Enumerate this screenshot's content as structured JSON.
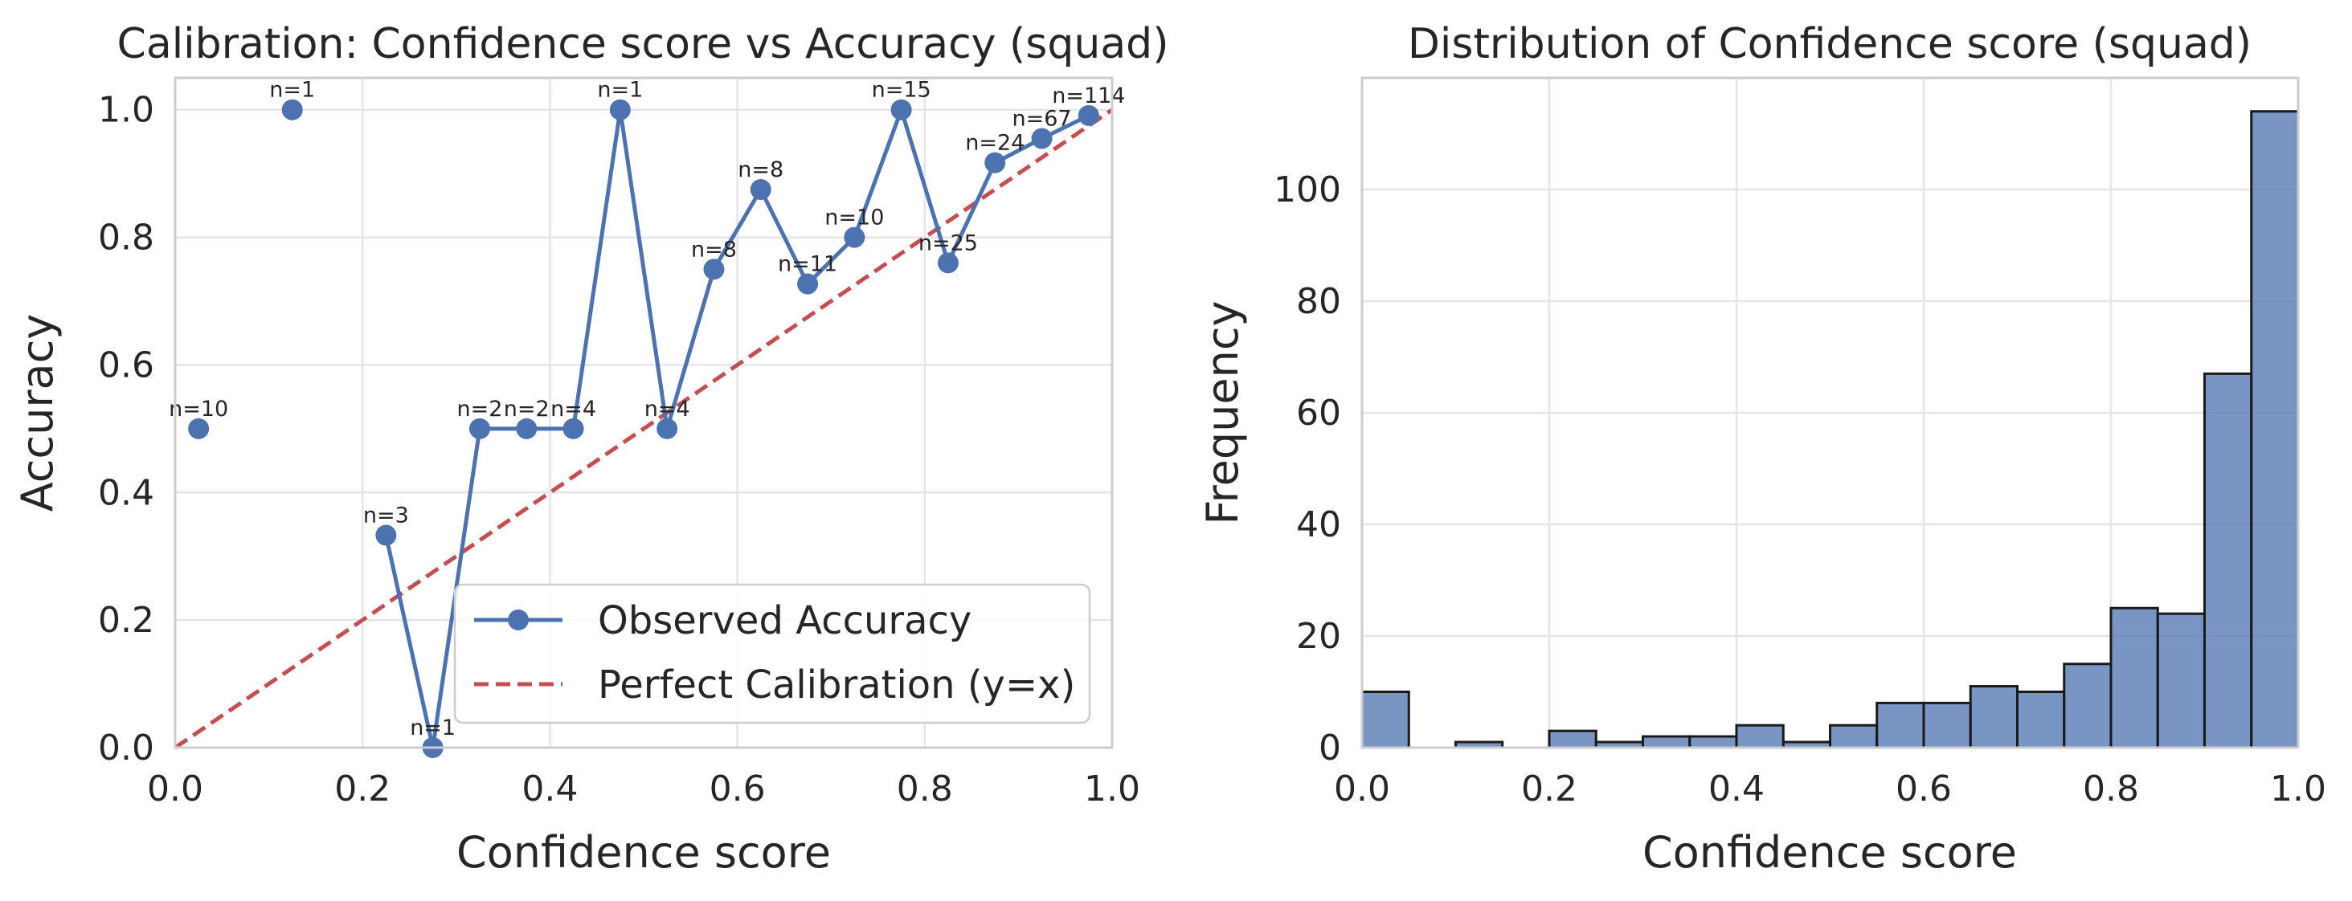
{
  "colors": {
    "series": "#4C72B0",
    "diagonal": "#C44E52",
    "frame": "#cccccc",
    "grid": "#e5e5e5",
    "text": "#262626"
  },
  "chart_data": [
    {
      "type": "line",
      "title": "Calibration: Confidence score vs Accuracy (squad)",
      "xlabel": "Confidence score",
      "ylabel": "Accuracy",
      "xlim": [
        0,
        1
      ],
      "ylim": [
        0,
        1.05
      ],
      "xticks": [
        "0.0",
        "0.2",
        "0.4",
        "0.6",
        "0.8",
        "1.0"
      ],
      "yticks": [
        "0.0",
        "0.2",
        "0.4",
        "0.6",
        "0.8",
        "1.0"
      ],
      "grid": true,
      "legend_position": "lower-right",
      "series": [
        {
          "name": "Observed Accuracy",
          "marker": "circle",
          "points": [
            {
              "x": 0.025,
              "y": 0.5,
              "label": "n=10"
            },
            {
              "x": 0.125,
              "y": 1.0,
              "label": "n=1"
            },
            {
              "x": 0.225,
              "y": 0.333,
              "label": "n=3"
            },
            {
              "x": 0.275,
              "y": 0.0,
              "label": "n=1"
            },
            {
              "x": 0.325,
              "y": 0.5,
              "label": "n=2"
            },
            {
              "x": 0.375,
              "y": 0.5,
              "label": "n=2"
            },
            {
              "x": 0.425,
              "y": 0.5,
              "label": "n=4"
            },
            {
              "x": 0.475,
              "y": 1.0,
              "label": "n=1"
            },
            {
              "x": 0.525,
              "y": 0.5,
              "label": "n=4"
            },
            {
              "x": 0.575,
              "y": 0.75,
              "label": "n=8"
            },
            {
              "x": 0.625,
              "y": 0.875,
              "label": "n=8"
            },
            {
              "x": 0.675,
              "y": 0.727,
              "label": "n=11"
            },
            {
              "x": 0.725,
              "y": 0.8,
              "label": "n=10"
            },
            {
              "x": 0.775,
              "y": 1.0,
              "label": "n=15"
            },
            {
              "x": 0.825,
              "y": 0.76,
              "label": "n=25"
            },
            {
              "x": 0.875,
              "y": 0.917,
              "label": "n=24"
            },
            {
              "x": 0.925,
              "y": 0.955,
              "label": "n=67"
            },
            {
              "x": 0.975,
              "y": 0.991,
              "label": "n=114"
            }
          ],
          "connect_from_index": 2
        },
        {
          "name": "Perfect Calibration (y=x)",
          "style": "dashed",
          "points": [
            {
              "x": 0,
              "y": 0
            },
            {
              "x": 1,
              "y": 1
            }
          ]
        }
      ]
    },
    {
      "type": "bar",
      "subtype": "histogram",
      "title": "Distribution of Confidence score (squad)",
      "xlabel": "Confidence score",
      "ylabel": "Frequency",
      "xlim": [
        0,
        1
      ],
      "ylim": [
        0,
        120
      ],
      "xticks": [
        "0.0",
        "0.2",
        "0.4",
        "0.6",
        "0.8",
        "1.0"
      ],
      "yticks": [
        "0",
        "20",
        "40",
        "60",
        "80",
        "100"
      ],
      "grid": true,
      "bin_edges": [
        0,
        0.05,
        0.1,
        0.15,
        0.2,
        0.25,
        0.3,
        0.35,
        0.4,
        0.45,
        0.5,
        0.55,
        0.6,
        0.65,
        0.7,
        0.75,
        0.8,
        0.85,
        0.9,
        0.95,
        1.0
      ],
      "values": [
        10,
        0,
        1,
        0,
        3,
        1,
        2,
        2,
        4,
        1,
        4,
        8,
        8,
        11,
        10,
        15,
        25,
        24,
        67,
        114
      ]
    }
  ]
}
